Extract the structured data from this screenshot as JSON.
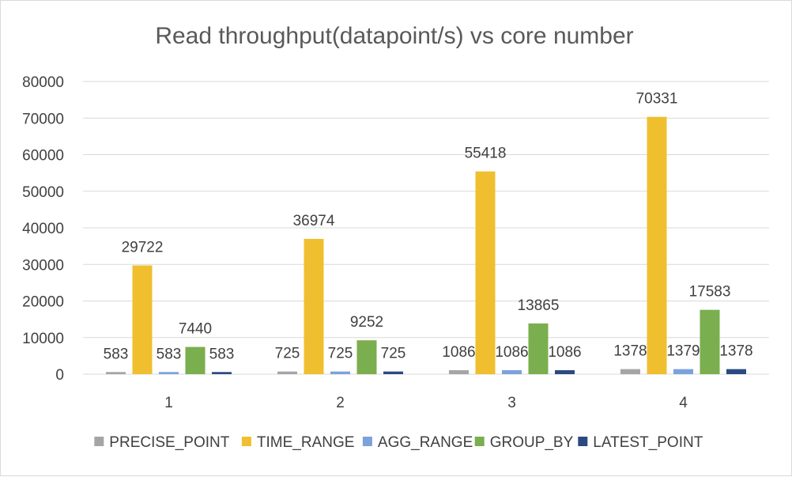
{
  "chart_data": {
    "type": "bar",
    "title": "Read throughput(datapoint/s) vs core number",
    "xlabel": "",
    "ylabel": "",
    "categories": [
      "1",
      "2",
      "3",
      "4"
    ],
    "ylim": [
      0,
      80000
    ],
    "yticks": [
      0,
      10000,
      20000,
      30000,
      40000,
      50000,
      60000,
      70000,
      80000
    ],
    "grid": true,
    "legend_position": "bottom",
    "series": [
      {
        "name": "PRECISE_POINT",
        "color": "#a5a5a5",
        "values": [
          583,
          725,
          1086,
          1378
        ]
      },
      {
        "name": "TIME_RANGE",
        "color": "#f0bf2f",
        "values": [
          29722,
          36974,
          55418,
          70331
        ]
      },
      {
        "name": "AGG_RANGE",
        "color": "#7ba2dc",
        "values": [
          583,
          725,
          1086,
          1379
        ]
      },
      {
        "name": "GROUP_BY",
        "color": "#7aae4e",
        "values": [
          7440,
          9252,
          13865,
          17583
        ]
      },
      {
        "name": "LATEST_POINT",
        "color": "#2b4a80",
        "values": [
          583,
          725,
          1086,
          1378
        ]
      }
    ]
  }
}
